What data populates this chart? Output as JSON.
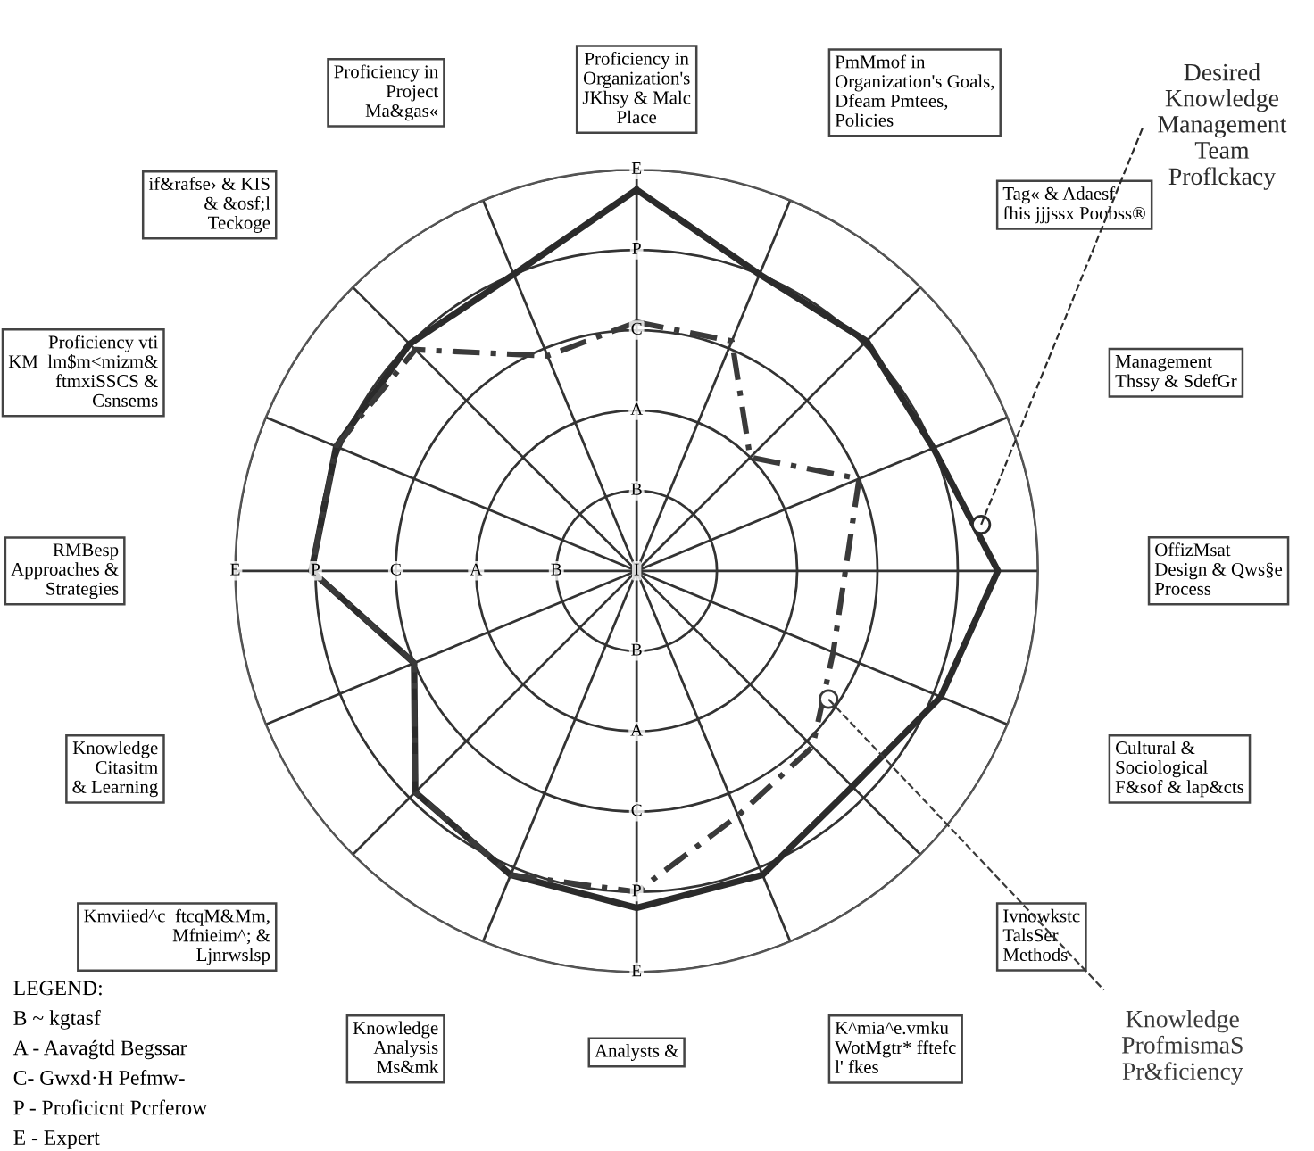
{
  "chart_data": {
    "type": "radar",
    "categories": [
      "Proficiency in\nOrganization's\nJKhsy & Malc\nPlace",
      "PmMmof in\nOrganization's Goals,\nDfeam Pmtees,\nPolicies",
      "Tag« & Adaesf\nfhis jjjssx Poobss®",
      "Management\nThssy & SdefGr",
      "OffizMsat\nDesign & Qws§e\nProcess",
      "Cultural &\nSociological\nF&sof & lap&cts",
      "Ivnowkstc\nTalsSer\nMethods",
      "K^mia^e.vmku\nWotMgtr* fftefc\nl' fkes",
      "Analysts &",
      "Knowledge\nAnalysis\nMs&mk",
      "Kmviied^c  ftcqM&Mm,\nMfnieim^; &\nLjnrwslsp",
      "Knowledge\nCitasitm\n& Learning",
      "RMBesp\nApproaches &\nStrategies",
      "Proficiency vti\nKM  lm$m<mizm&\nftmxiSSCS &\nCsnsems",
      "if&rafse› & KIS\n& &osf;l\nTeckoge",
      "Proficiency in\nProject\nMa&gas«"
    ],
    "series": [
      {
        "name": "Desired\nKnowledge\nManagement\nTeam\nProflckacy",
        "color": "#2b2b2b",
        "line_style": "solid",
        "values": [
          4.75,
          4.0,
          4.05,
          4.0,
          4.5,
          4.1,
          3.8,
          4.1,
          4.2,
          4.1,
          3.9,
          3.0,
          4.05,
          4.05,
          4.0,
          4.0
        ]
      },
      {
        "name": "Knowledge\nProfmismaS\nPr&ficiency",
        "color": "#3a3a3a",
        "line_style": "dashed",
        "values": [
          3.1,
          3.1,
          2.0,
          3.0,
          2.6,
          2.65,
          3.1,
          3.3,
          4.0,
          4.1,
          3.9,
          3.0,
          4.05,
          4.05,
          3.9,
          2.9
        ]
      }
    ],
    "ylim": [
      0,
      5
    ],
    "yticks": [
      {
        "value": 0,
        "label": "I"
      },
      {
        "value": 1,
        "label": "B"
      },
      {
        "value": 2,
        "label": "A"
      },
      {
        "value": 3,
        "label": "C"
      },
      {
        "value": 4,
        "label": "P"
      },
      {
        "value": 5,
        "label": "E"
      }
    ],
    "grid": true,
    "marker": "none",
    "annotations": [
      "LEGEND:",
      "B ~ kgtasf",
      "A - Aavaǵtd Begssar",
      "C- Gwxd·H Pefmw-",
      "P - Proficicnt Pcrferow",
      "E - Expert"
    ]
  }
}
